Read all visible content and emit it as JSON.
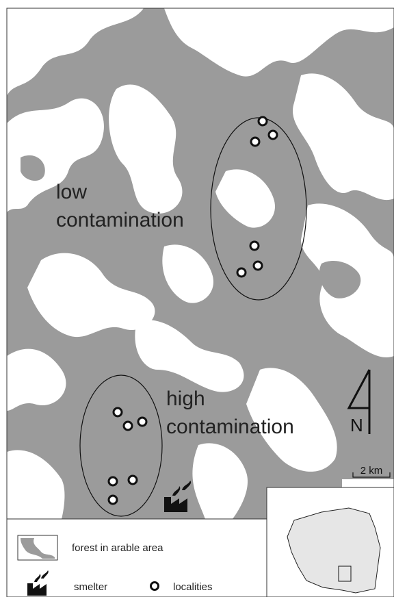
{
  "map": {
    "zones": [
      {
        "lines": [
          "low",
          "contamination"
        ]
      },
      {
        "lines": [
          "high",
          "contamination"
        ]
      }
    ],
    "north": "N",
    "scale": "2 km",
    "legend": {
      "forest": "forest in arable area",
      "smelter": "smelter",
      "localities": "localities"
    }
  }
}
